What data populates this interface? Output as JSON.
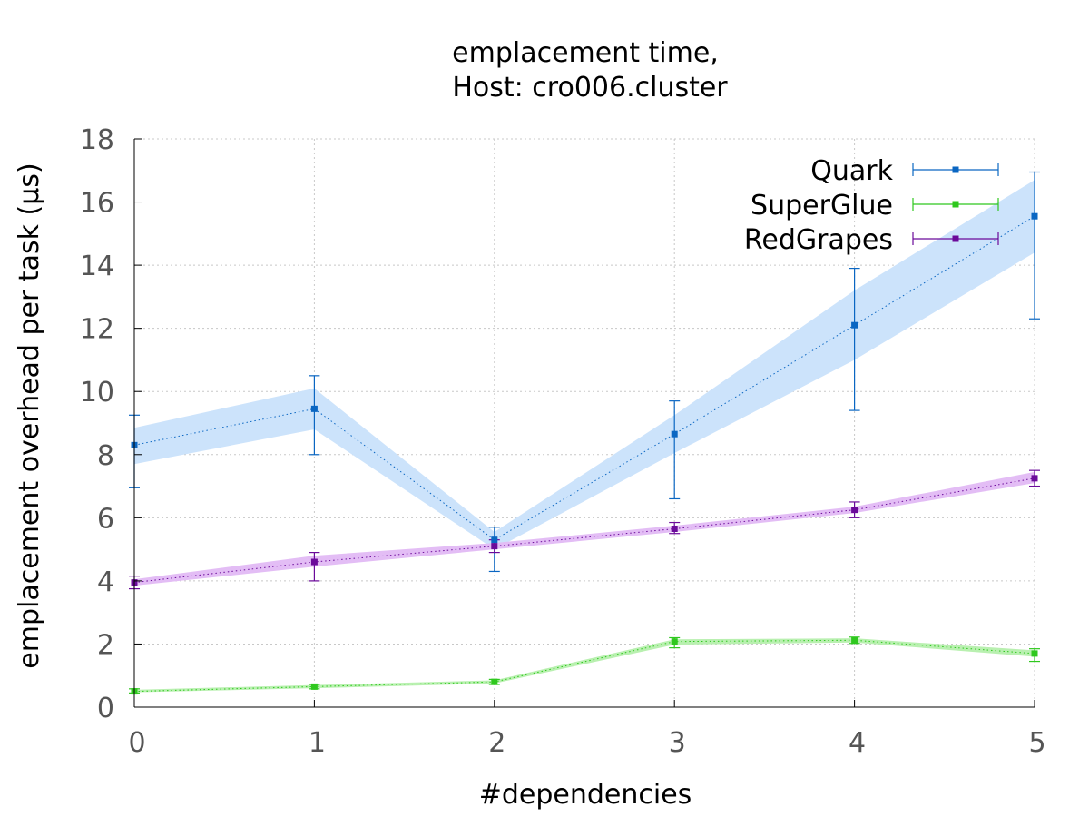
{
  "chart_data": {
    "type": "line",
    "title_lines": [
      "emplacement time,",
      "Host: cro006.cluster"
    ],
    "xlabel": "#dependencies",
    "ylabel": "emplacement overhead per task (µs)",
    "x": [
      0,
      1,
      2,
      3,
      4,
      5
    ],
    "xlim": [
      0,
      5
    ],
    "ylim": [
      0,
      18
    ],
    "xticks": [
      "0",
      "1",
      "2",
      "3",
      "4",
      "5"
    ],
    "yticks": [
      "0",
      "2",
      "4",
      "6",
      "8",
      "10",
      "12",
      "14",
      "16",
      "18"
    ],
    "grid": true,
    "legend_position": "top-right",
    "series": [
      {
        "name": "Quark",
        "color": "#0a66c2",
        "band_color": "#cce3fb",
        "values": [
          8.3,
          9.45,
          5.3,
          8.65,
          12.1,
          15.55
        ],
        "err_low": [
          6.95,
          8.0,
          4.3,
          6.6,
          9.4,
          12.3
        ],
        "err_high": [
          9.25,
          10.5,
          5.7,
          9.7,
          13.9,
          16.95
        ],
        "band_low": [
          7.7,
          8.8,
          5.0,
          8.05,
          11.0,
          14.4
        ],
        "band_high": [
          8.85,
          10.1,
          5.55,
          9.25,
          13.2,
          16.7
        ]
      },
      {
        "name": "SuperGlue",
        "color": "#2fc81e",
        "band_color": "#b9f0b0",
        "values": [
          0.5,
          0.65,
          0.8,
          2.08,
          2.12,
          1.7
        ],
        "err_low": [
          0.45,
          0.58,
          0.72,
          1.88,
          2.02,
          1.45
        ],
        "err_high": [
          0.58,
          0.72,
          0.88,
          2.2,
          2.22,
          1.85
        ],
        "band_low": [
          0.47,
          0.6,
          0.75,
          1.98,
          2.05,
          1.6
        ],
        "band_high": [
          0.55,
          0.7,
          0.85,
          2.15,
          2.18,
          1.8
        ]
      },
      {
        "name": "RedGrapes",
        "color": "#6b0a9a",
        "band_color": "#e3bdf5",
        "values": [
          3.95,
          4.6,
          5.1,
          5.65,
          6.25,
          7.25
        ],
        "err_low": [
          3.75,
          4.0,
          4.9,
          5.5,
          6.0,
          7.0
        ],
        "err_high": [
          4.15,
          4.9,
          5.3,
          5.85,
          6.5,
          7.5
        ],
        "band_low": [
          3.85,
          4.45,
          5.0,
          5.55,
          6.15,
          7.1
        ],
        "band_high": [
          4.05,
          4.8,
          5.2,
          5.75,
          6.35,
          7.45
        ]
      }
    ]
  }
}
